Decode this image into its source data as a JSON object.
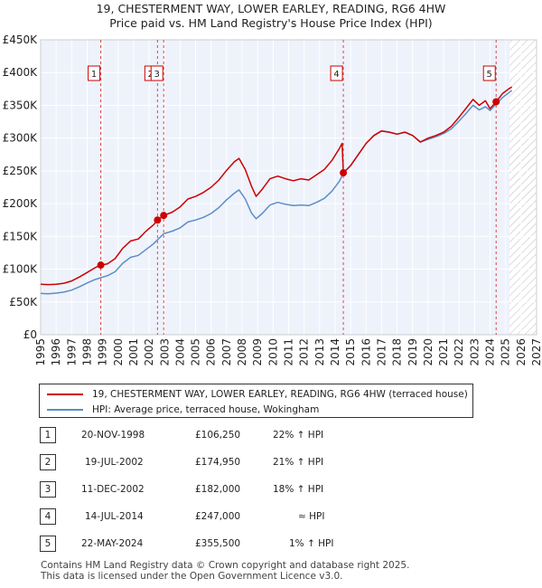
{
  "header": {
    "title": "19, CHESTERMENT WAY, LOWER EARLEY, READING, RG6 4HW",
    "subtitle": "Price paid vs. HM Land Registry's House Price Index (HPI)"
  },
  "chart_data": {
    "type": "line",
    "title": "19, CHESTERMENT WAY, LOWER EARLEY, READING, RG6 4HW",
    "subtitle": "Price paid vs. HM Land Registry's House Price Index (HPI)",
    "xlim": [
      1995,
      2027
    ],
    "ylim": [
      0,
      450000
    ],
    "x_ticks": [
      "1995",
      "1996",
      "1997",
      "1998",
      "1999",
      "2000",
      "2001",
      "2002",
      "2003",
      "2004",
      "2005",
      "2006",
      "2007",
      "2008",
      "2009",
      "2010",
      "2011",
      "2012",
      "2013",
      "2014",
      "2015",
      "2016",
      "2017",
      "2018",
      "2019",
      "2020",
      "2021",
      "2022",
      "2023",
      "2024",
      "2025",
      "2026",
      "2027"
    ],
    "y_ticks": [
      {
        "value": 0,
        "label": "£0"
      },
      {
        "value": 50000,
        "label": "£50K"
      },
      {
        "value": 100000,
        "label": "£100K"
      },
      {
        "value": 150000,
        "label": "£150K"
      },
      {
        "value": 200000,
        "label": "£200K"
      },
      {
        "value": 250000,
        "label": "£250K"
      },
      {
        "value": 300000,
        "label": "£300K"
      },
      {
        "value": 350000,
        "label": "£350K"
      },
      {
        "value": 400000,
        "label": "£400K"
      },
      {
        "value": 450000,
        "label": "£450K"
      }
    ],
    "grid": true,
    "hatched_future_from": 2025.25,
    "series": [
      {
        "name": "19, CHESTERMENT WAY, LOWER EARLEY, READING, RG6 4HW (terraced house)",
        "color": "#cc0000",
        "points": [
          [
            1995.0,
            77000
          ],
          [
            1995.5,
            76500
          ],
          [
            1996.0,
            77000
          ],
          [
            1996.5,
            78500
          ],
          [
            1997.0,
            82000
          ],
          [
            1997.5,
            88000
          ],
          [
            1998.0,
            95000
          ],
          [
            1998.5,
            102000
          ],
          [
            1998.88,
            106250
          ],
          [
            1999.3,
            108000
          ],
          [
            1999.8,
            116000
          ],
          [
            2000.3,
            132000
          ],
          [
            2000.8,
            143000
          ],
          [
            2001.3,
            146000
          ],
          [
            2001.8,
            158000
          ],
          [
            2002.3,
            168000
          ],
          [
            2002.54,
            174950
          ],
          [
            2002.94,
            182000
          ],
          [
            2003.5,
            187000
          ],
          [
            2004.0,
            195000
          ],
          [
            2004.5,
            207000
          ],
          [
            2005.0,
            211000
          ],
          [
            2005.5,
            217000
          ],
          [
            2006.0,
            225000
          ],
          [
            2006.5,
            236000
          ],
          [
            2007.0,
            251000
          ],
          [
            2007.5,
            264000
          ],
          [
            2007.8,
            269000
          ],
          [
            2008.2,
            252000
          ],
          [
            2008.6,
            227000
          ],
          [
            2008.9,
            211000
          ],
          [
            2009.3,
            222000
          ],
          [
            2009.8,
            238000
          ],
          [
            2010.3,
            242000
          ],
          [
            2010.8,
            238000
          ],
          [
            2011.3,
            235000
          ],
          [
            2011.8,
            238000
          ],
          [
            2012.3,
            236000
          ],
          [
            2012.8,
            244000
          ],
          [
            2013.3,
            252000
          ],
          [
            2013.8,
            266000
          ],
          [
            2014.3,
            285000
          ],
          [
            2014.45,
            292000
          ],
          [
            2014.53,
            247000
          ],
          [
            2015.0,
            258000
          ],
          [
            2015.5,
            275000
          ],
          [
            2016.0,
            292000
          ],
          [
            2016.5,
            304000
          ],
          [
            2017.0,
            311000
          ],
          [
            2017.5,
            309000
          ],
          [
            2018.0,
            306000
          ],
          [
            2018.5,
            309000
          ],
          [
            2019.0,
            304000
          ],
          [
            2019.5,
            294000
          ],
          [
            2020.0,
            300000
          ],
          [
            2020.5,
            304000
          ],
          [
            2021.0,
            309000
          ],
          [
            2021.5,
            318000
          ],
          [
            2022.0,
            332000
          ],
          [
            2022.5,
            347000
          ],
          [
            2022.9,
            359000
          ],
          [
            2023.3,
            350000
          ],
          [
            2023.7,
            357000
          ],
          [
            2024.0,
            345000
          ],
          [
            2024.39,
            355500
          ],
          [
            2024.8,
            368000
          ],
          [
            2025.2,
            375000
          ],
          [
            2025.4,
            378000
          ]
        ]
      },
      {
        "name": "HPI: Average price, terraced house, Wokingham",
        "color": "#5b8ec7",
        "points": [
          [
            1995.0,
            63000
          ],
          [
            1995.5,
            62500
          ],
          [
            1996.0,
            63500
          ],
          [
            1996.5,
            65000
          ],
          [
            1997.0,
            68000
          ],
          [
            1997.5,
            73000
          ],
          [
            1998.0,
            79000
          ],
          [
            1998.5,
            84000
          ],
          [
            1998.88,
            87000
          ],
          [
            1999.3,
            90000
          ],
          [
            1999.8,
            96000
          ],
          [
            2000.3,
            109000
          ],
          [
            2000.8,
            118000
          ],
          [
            2001.3,
            121000
          ],
          [
            2001.8,
            130000
          ],
          [
            2002.3,
            139000
          ],
          [
            2002.54,
            145000
          ],
          [
            2002.94,
            154000
          ],
          [
            2003.5,
            158000
          ],
          [
            2004.0,
            163000
          ],
          [
            2004.5,
            172000
          ],
          [
            2005.0,
            175000
          ],
          [
            2005.5,
            179000
          ],
          [
            2006.0,
            185000
          ],
          [
            2006.5,
            194000
          ],
          [
            2007.0,
            206000
          ],
          [
            2007.5,
            216000
          ],
          [
            2007.8,
            221000
          ],
          [
            2008.2,
            207000
          ],
          [
            2008.6,
            186000
          ],
          [
            2008.9,
            177000
          ],
          [
            2009.3,
            185000
          ],
          [
            2009.8,
            198000
          ],
          [
            2010.3,
            202000
          ],
          [
            2010.8,
            199000
          ],
          [
            2011.3,
            197000
          ],
          [
            2011.8,
            198000
          ],
          [
            2012.3,
            197000
          ],
          [
            2012.8,
            202000
          ],
          [
            2013.3,
            208000
          ],
          [
            2013.8,
            219000
          ],
          [
            2014.3,
            235000
          ],
          [
            2014.53,
            247000
          ],
          [
            2015.0,
            258000
          ],
          [
            2015.5,
            275000
          ],
          [
            2016.0,
            292000
          ],
          [
            2016.5,
            304000
          ],
          [
            2017.0,
            311000
          ],
          [
            2017.5,
            309000
          ],
          [
            2018.0,
            306000
          ],
          [
            2018.5,
            309000
          ],
          [
            2019.0,
            304000
          ],
          [
            2019.5,
            294000
          ],
          [
            2020.0,
            298000
          ],
          [
            2020.5,
            302000
          ],
          [
            2021.0,
            307000
          ],
          [
            2021.5,
            314000
          ],
          [
            2022.0,
            326000
          ],
          [
            2022.5,
            339000
          ],
          [
            2022.9,
            350000
          ],
          [
            2023.3,
            343000
          ],
          [
            2023.7,
            348000
          ],
          [
            2024.0,
            342000
          ],
          [
            2024.39,
            352000
          ],
          [
            2024.8,
            362000
          ],
          [
            2025.2,
            369000
          ],
          [
            2025.4,
            373000
          ]
        ]
      }
    ],
    "sales": [
      {
        "num": "1",
        "x": 1998.88,
        "price": 106250
      },
      {
        "num": "2",
        "x": 2002.54,
        "price": 174950
      },
      {
        "num": "3",
        "x": 2002.94,
        "price": 182000
      },
      {
        "num": "4",
        "x": 2014.53,
        "price": 247000
      },
      {
        "num": "5",
        "x": 2024.39,
        "price": 355500
      }
    ]
  },
  "legend": {
    "property_label": "19, CHESTERMENT WAY, LOWER EARLEY, READING, RG6 4HW (terraced house)",
    "hpi_label": "HPI: Average price, terraced house, Wokingham",
    "property_color": "#cc0000",
    "hpi_color": "#5b8ec7"
  },
  "sales_table": [
    {
      "num": "1",
      "date": "20-NOV-1998",
      "price": "£106,250",
      "hpi": "22% ↑ HPI"
    },
    {
      "num": "2",
      "date": "19-JUL-2002",
      "price": "£174,950",
      "hpi": "21% ↑ HPI"
    },
    {
      "num": "3",
      "date": "11-DEC-2002",
      "price": "£182,000",
      "hpi": "18% ↑ HPI"
    },
    {
      "num": "4",
      "date": "14-JUL-2014",
      "price": "£247,000",
      "hpi": "≈ HPI"
    },
    {
      "num": "5",
      "date": "22-MAY-2024",
      "price": "£355,500",
      "hpi": "1% ↑ HPI"
    }
  ],
  "footer": {
    "line1": "Contains HM Land Registry data © Crown copyright and database right 2025.",
    "line2": "This data is licensed under the Open Government Licence v3.0."
  }
}
